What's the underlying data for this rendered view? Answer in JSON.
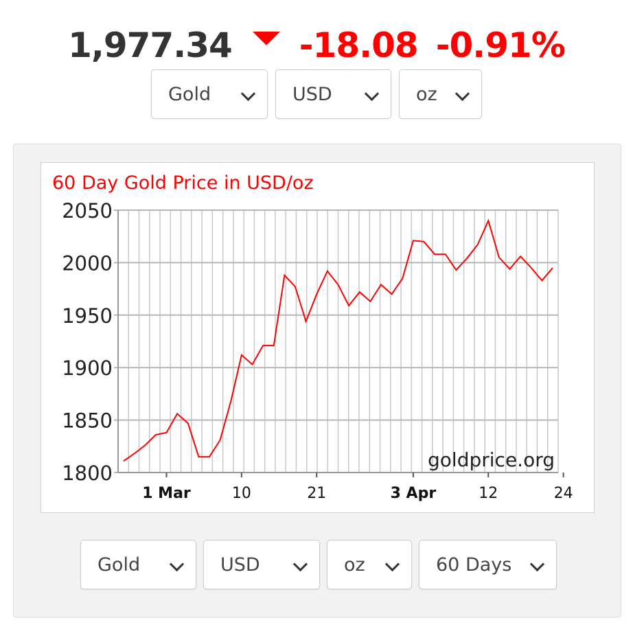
{
  "header": {
    "price": "1,977.34",
    "change": "-18.08",
    "change_pct": "-0.91%",
    "direction_icon": "down-triangle-icon",
    "down_color": "#ff0000"
  },
  "top_selectors": {
    "metal": "Gold",
    "currency": "USD",
    "unit": "oz"
  },
  "bottom_selectors": {
    "metal": "Gold",
    "currency": "USD",
    "unit": "oz",
    "range": "60 Days"
  },
  "chart_data": {
    "type": "line",
    "title": "60 Day Gold Price in USD/oz",
    "watermark": "goldprice.org",
    "xlabel": "",
    "ylabel": "",
    "ylim": [
      1800,
      2050
    ],
    "grid": true,
    "yticks": [
      "2050",
      "2000",
      "1950",
      "1900",
      "1850",
      "1800"
    ],
    "xticks": [
      {
        "label": "1 Mar",
        "bold": true,
        "index": 4
      },
      {
        "label": "10",
        "bold": false,
        "index": 11
      },
      {
        "label": "21",
        "bold": false,
        "index": 18
      },
      {
        "label": "3 Apr",
        "bold": true,
        "index": 27
      },
      {
        "label": "12",
        "bold": false,
        "index": 34
      },
      {
        "label": "24",
        "bold": false,
        "index": 41
      }
    ],
    "line_color": "#ff0000",
    "title_color": "#ff0000",
    "series": [
      {
        "values": [
          1811,
          1818,
          1826,
          1836,
          1838,
          1856,
          1847,
          1815,
          1815,
          1831,
          1868,
          1912,
          1903,
          1921,
          1921,
          1988,
          1977,
          1944,
          1970,
          1992,
          1979,
          1959,
          1972,
          1963,
          1979,
          1970,
          1985,
          2021,
          2020,
          2008,
          2008,
          1993,
          2004,
          2017,
          2040,
          2005,
          1994,
          2006,
          1995,
          1983,
          1995
        ]
      }
    ]
  }
}
